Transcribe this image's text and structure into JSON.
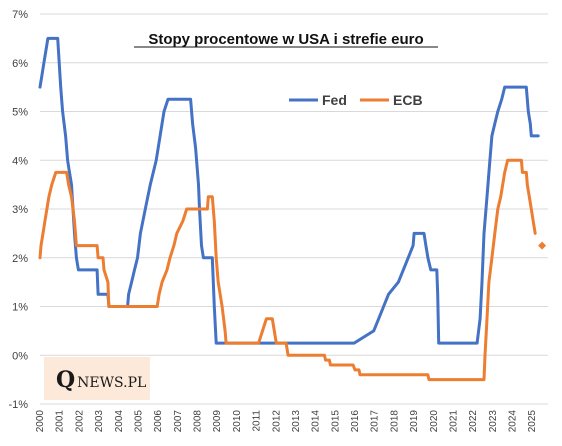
{
  "logo": {
    "initial": "Q",
    "rest": "NEWS.PL",
    "bg": "#fde9d9"
  },
  "colors": {
    "fed": "#4472c4",
    "ecb": "#ed7d31",
    "grid": "#d9d9d9",
    "axis": "#bfbfbf"
  },
  "chart_data": {
    "type": "line",
    "title": "Stopy procentowe w USA i strefie euro",
    "xlabel": "",
    "ylabel": "",
    "ylim": [
      -1,
      7
    ],
    "xlim": [
      2000,
      2025.8
    ],
    "grid": "horizontal",
    "legend": "top-center",
    "y_ticks": [
      "-1%",
      "0%",
      "1%",
      "2%",
      "3%",
      "4%",
      "5%",
      "6%",
      "7%"
    ],
    "x_ticks": [
      "2000",
      "2001",
      "2002",
      "2003",
      "2004",
      "2005",
      "2006",
      "2007",
      "2008",
      "2009",
      "2010",
      "2011",
      "2012",
      "2013",
      "2014",
      "2015",
      "2016",
      "2017",
      "2018",
      "2019",
      "2020",
      "2021",
      "2022",
      "2023",
      "2024",
      "2025"
    ],
    "series": [
      {
        "name": "Fed",
        "points": [
          [
            2000.0,
            5.5
          ],
          [
            2000.1,
            5.75
          ],
          [
            2000.2,
            6.0
          ],
          [
            2000.4,
            6.5
          ],
          [
            2000.9,
            6.5
          ],
          [
            2001.05,
            5.5
          ],
          [
            2001.15,
            5.0
          ],
          [
            2001.3,
            4.5
          ],
          [
            2001.4,
            4.0
          ],
          [
            2001.5,
            3.75
          ],
          [
            2001.6,
            3.5
          ],
          [
            2001.75,
            2.5
          ],
          [
            2001.85,
            2.0
          ],
          [
            2001.95,
            1.75
          ],
          [
            2002.9,
            1.75
          ],
          [
            2002.95,
            1.25
          ],
          [
            2003.45,
            1.25
          ],
          [
            2003.5,
            1.0
          ],
          [
            2004.45,
            1.0
          ],
          [
            2004.5,
            1.25
          ],
          [
            2004.65,
            1.5
          ],
          [
            2004.8,
            1.75
          ],
          [
            2004.95,
            2.0
          ],
          [
            2005.1,
            2.5
          ],
          [
            2005.35,
            3.0
          ],
          [
            2005.6,
            3.5
          ],
          [
            2005.9,
            4.0
          ],
          [
            2006.1,
            4.5
          ],
          [
            2006.3,
            5.0
          ],
          [
            2006.5,
            5.25
          ],
          [
            2007.65,
            5.25
          ],
          [
            2007.75,
            4.75
          ],
          [
            2007.9,
            4.25
          ],
          [
            2008.05,
            3.5
          ],
          [
            2008.1,
            3.0
          ],
          [
            2008.2,
            2.25
          ],
          [
            2008.3,
            2.0
          ],
          [
            2008.75,
            2.0
          ],
          [
            2008.8,
            1.5
          ],
          [
            2008.85,
            1.0
          ],
          [
            2008.95,
            0.25
          ],
          [
            2015.95,
            0.25
          ],
          [
            2016.95,
            0.5
          ],
          [
            2017.2,
            0.75
          ],
          [
            2017.45,
            1.0
          ],
          [
            2017.7,
            1.25
          ],
          [
            2018.2,
            1.5
          ],
          [
            2018.45,
            1.75
          ],
          [
            2018.7,
            2.0
          ],
          [
            2018.95,
            2.25
          ],
          [
            2019.0,
            2.5
          ],
          [
            2019.5,
            2.5
          ],
          [
            2019.6,
            2.25
          ],
          [
            2019.7,
            2.0
          ],
          [
            2019.85,
            1.75
          ],
          [
            2020.15,
            1.75
          ],
          [
            2020.2,
            1.25
          ],
          [
            2020.25,
            0.25
          ],
          [
            2022.2,
            0.25
          ],
          [
            2022.35,
            0.75
          ],
          [
            2022.45,
            1.5
          ],
          [
            2022.55,
            2.5
          ],
          [
            2022.7,
            3.25
          ],
          [
            2022.85,
            4.0
          ],
          [
            2022.95,
            4.5
          ],
          [
            2023.1,
            4.75
          ],
          [
            2023.25,
            5.0
          ],
          [
            2023.45,
            5.25
          ],
          [
            2023.6,
            5.5
          ],
          [
            2024.7,
            5.5
          ],
          [
            2024.8,
            5.0
          ],
          [
            2024.9,
            4.75
          ],
          [
            2024.95,
            4.5
          ],
          [
            2025.3,
            4.5
          ]
        ]
      },
      {
        "name": "ECB",
        "points": [
          [
            2000.0,
            2.0
          ],
          [
            2000.05,
            2.25
          ],
          [
            2000.15,
            2.5
          ],
          [
            2000.25,
            2.75
          ],
          [
            2000.35,
            3.0
          ],
          [
            2000.45,
            3.25
          ],
          [
            2000.6,
            3.5
          ],
          [
            2000.8,
            3.75
          ],
          [
            2001.35,
            3.75
          ],
          [
            2001.45,
            3.5
          ],
          [
            2001.6,
            3.25
          ],
          [
            2001.75,
            2.75
          ],
          [
            2001.85,
            2.25
          ],
          [
            2002.9,
            2.25
          ],
          [
            2002.95,
            2.0
          ],
          [
            2003.2,
            2.0
          ],
          [
            2003.25,
            1.75
          ],
          [
            2003.45,
            1.5
          ],
          [
            2003.5,
            1.0
          ],
          [
            2005.95,
            1.0
          ],
          [
            2006.05,
            1.25
          ],
          [
            2006.2,
            1.5
          ],
          [
            2006.45,
            1.75
          ],
          [
            2006.6,
            2.0
          ],
          [
            2006.8,
            2.25
          ],
          [
            2006.95,
            2.5
          ],
          [
            2007.25,
            2.75
          ],
          [
            2007.45,
            3.0
          ],
          [
            2008.5,
            3.0
          ],
          [
            2008.55,
            3.25
          ],
          [
            2008.75,
            3.25
          ],
          [
            2008.85,
            2.75
          ],
          [
            2008.95,
            2.0
          ],
          [
            2009.05,
            1.5
          ],
          [
            2009.25,
            1.0
          ],
          [
            2009.4,
            0.5
          ],
          [
            2009.45,
            0.25
          ],
          [
            2011.1,
            0.25
          ],
          [
            2011.3,
            0.5
          ],
          [
            2011.5,
            0.75
          ],
          [
            2011.8,
            0.75
          ],
          [
            2011.9,
            0.5
          ],
          [
            2012.0,
            0.25
          ],
          [
            2012.5,
            0.25
          ],
          [
            2012.6,
            0.0
          ],
          [
            2014.45,
            0.0
          ],
          [
            2014.5,
            -0.1
          ],
          [
            2014.7,
            -0.1
          ],
          [
            2014.75,
            -0.2
          ],
          [
            2015.9,
            -0.2
          ],
          [
            2016.0,
            -0.3
          ],
          [
            2016.2,
            -0.3
          ],
          [
            2016.25,
            -0.4
          ],
          [
            2019.7,
            -0.4
          ],
          [
            2019.75,
            -0.5
          ],
          [
            2022.55,
            -0.5
          ],
          [
            2022.6,
            0.0
          ],
          [
            2022.7,
            0.75
          ],
          [
            2022.8,
            1.5
          ],
          [
            2022.95,
            2.0
          ],
          [
            2023.1,
            2.5
          ],
          [
            2023.25,
            3.0
          ],
          [
            2023.4,
            3.25
          ],
          [
            2023.5,
            3.5
          ],
          [
            2023.6,
            3.75
          ],
          [
            2023.75,
            4.0
          ],
          [
            2024.45,
            4.0
          ],
          [
            2024.5,
            3.75
          ],
          [
            2024.7,
            3.75
          ],
          [
            2024.75,
            3.5
          ],
          [
            2024.85,
            3.25
          ],
          [
            2024.95,
            3.0
          ],
          [
            2025.05,
            2.75
          ],
          [
            2025.15,
            2.5
          ]
        ],
        "marker": {
          "x": 2025.5,
          "y": 2.25
        }
      }
    ]
  }
}
